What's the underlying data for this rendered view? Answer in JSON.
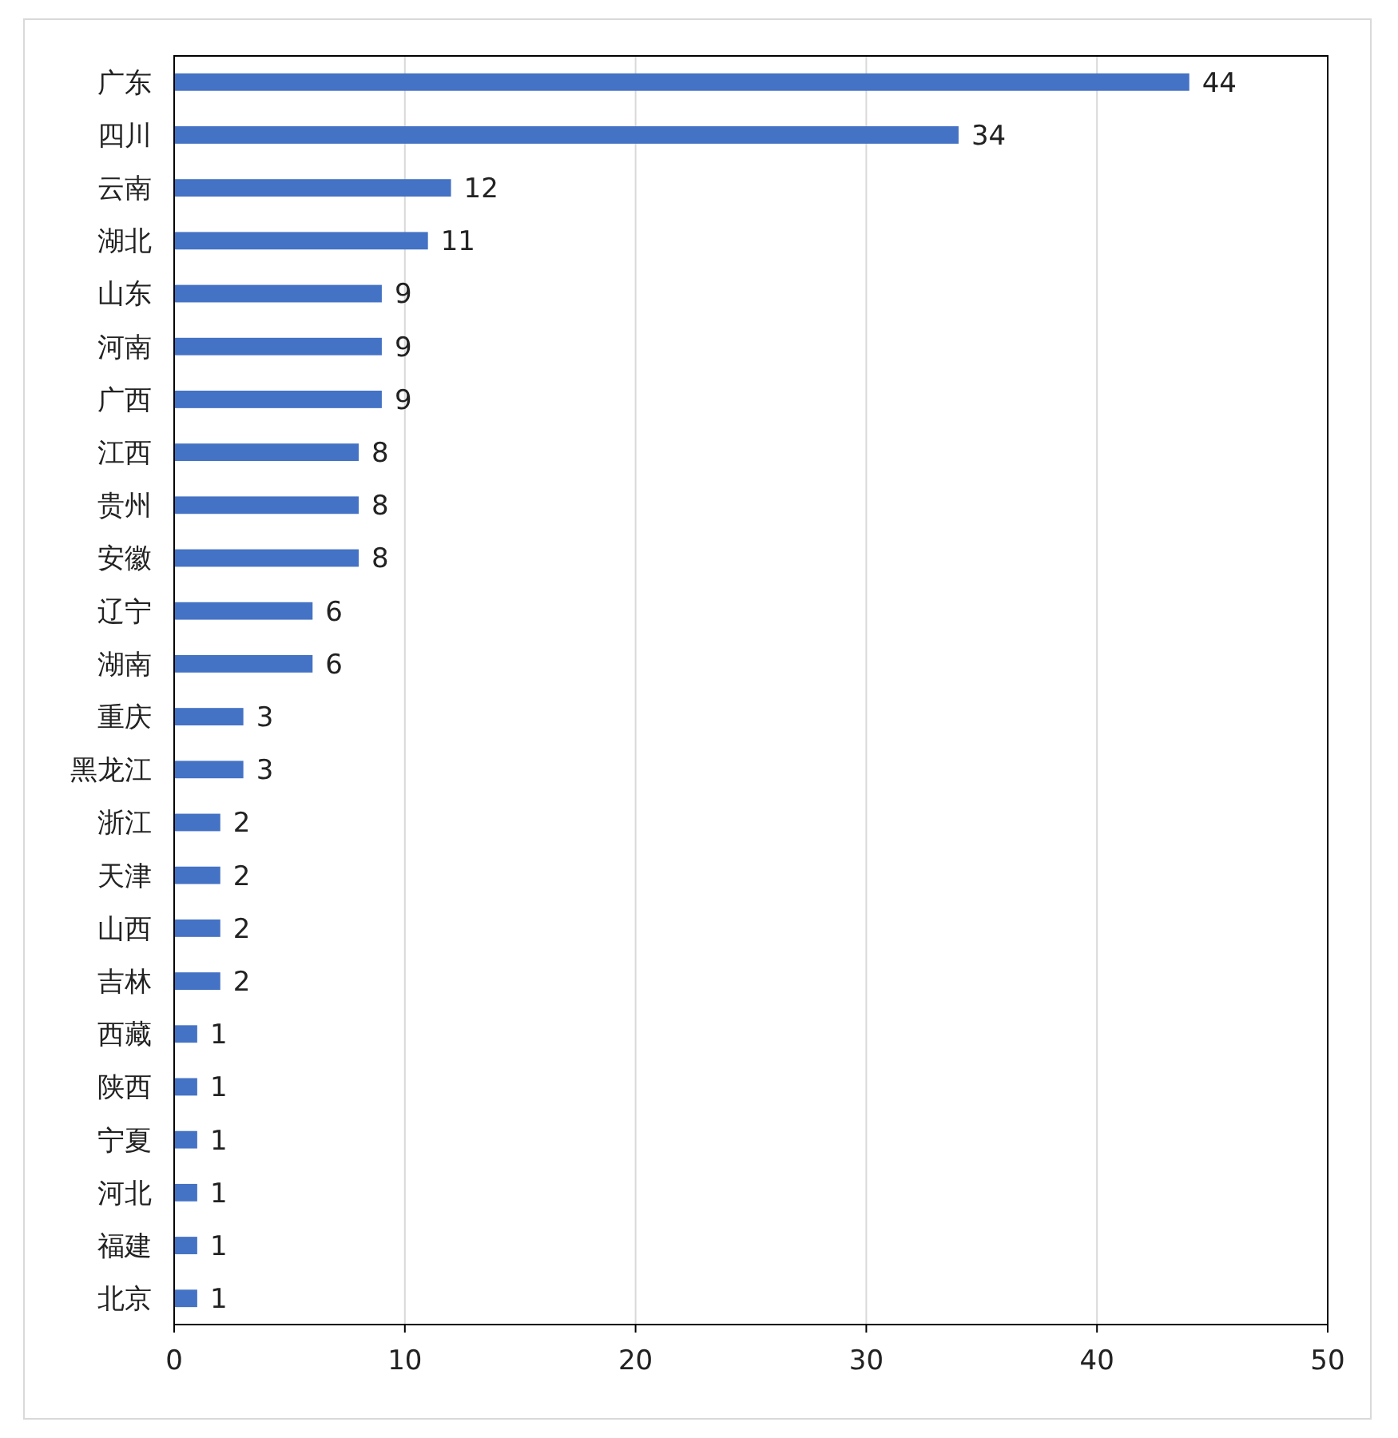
{
  "chart_data": {
    "type": "bar",
    "orientation": "horizontal",
    "categories": [
      "广东",
      "四川",
      "云南",
      "湖北",
      "山东",
      "河南",
      "广西",
      "江西",
      "贵州",
      "安徽",
      "辽宁",
      "湖南",
      "重庆",
      "黑龙江",
      "浙江",
      "天津",
      "山西",
      "吉林",
      "西藏",
      "陕西",
      "宁夏",
      "河北",
      "福建",
      "北京"
    ],
    "values": [
      44,
      34,
      12,
      11,
      9,
      9,
      9,
      8,
      8,
      8,
      6,
      6,
      3,
      3,
      2,
      2,
      2,
      2,
      1,
      1,
      1,
      1,
      1,
      1
    ],
    "color": "#4472c4",
    "xlim": [
      0,
      50
    ],
    "xticks": [
      0,
      10,
      20,
      30,
      40,
      50
    ],
    "grid": "x",
    "data_labels": true
  }
}
